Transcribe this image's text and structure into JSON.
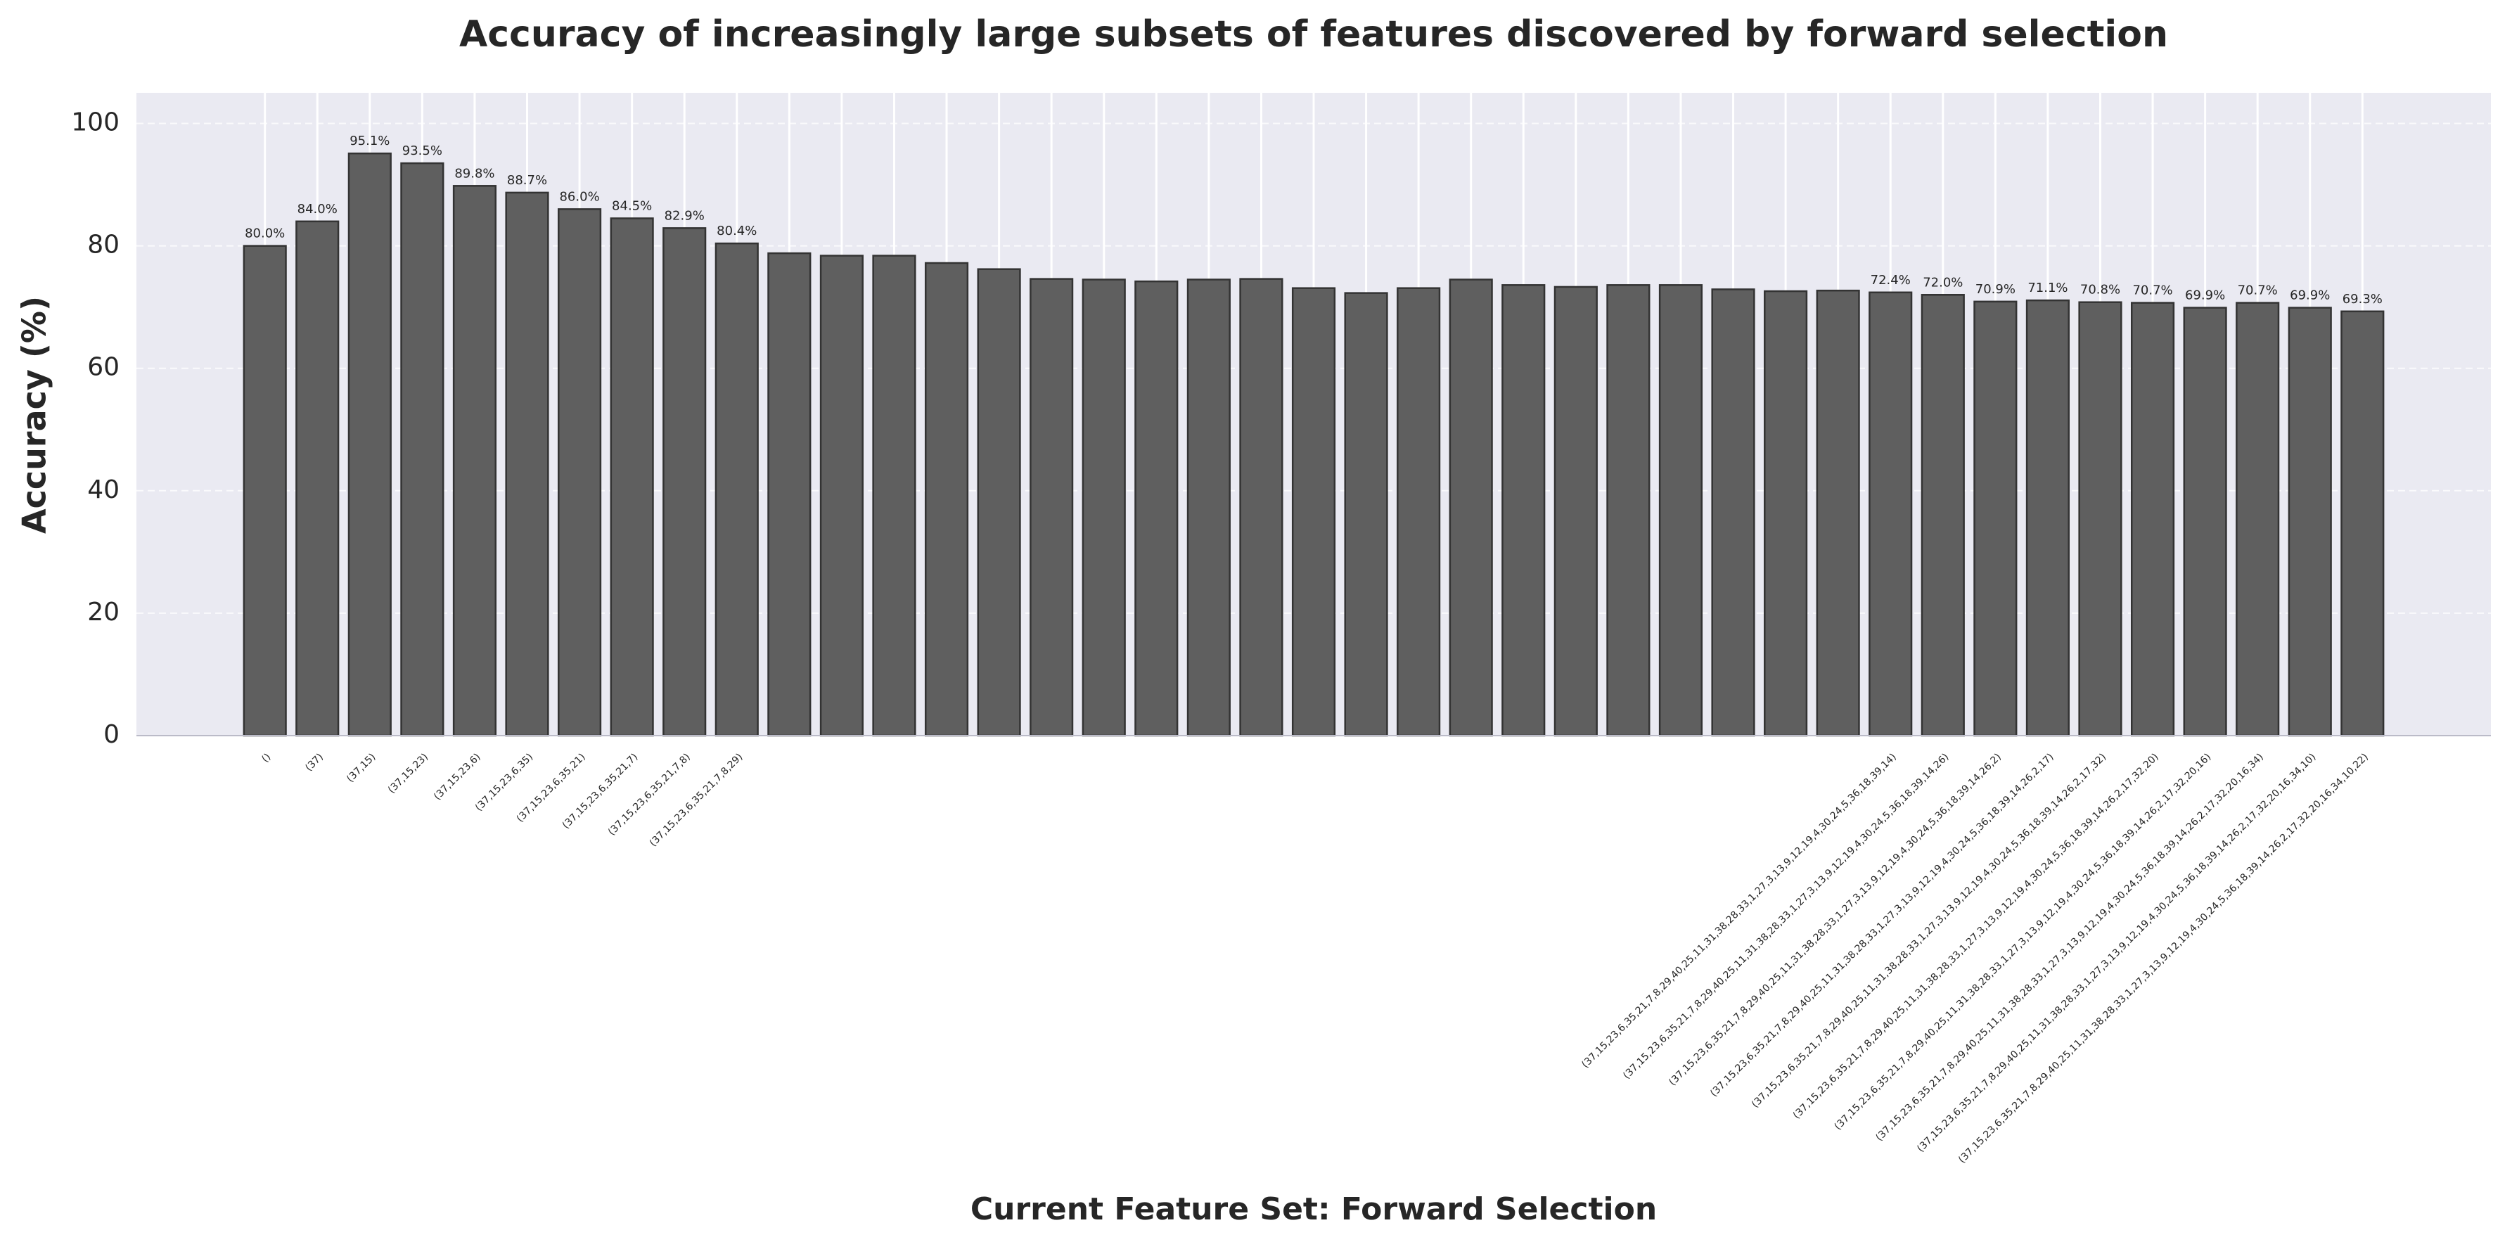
{
  "chart_data": {
    "type": "bar",
    "title": "Accuracy of increasingly large subsets of features discovered by forward selection",
    "x_label": "Current Feature Set: Forward Selection",
    "y_label": "Accuracy (%)",
    "categories": [
      "()",
      "(37)",
      "(37,15)",
      "(37,15,23)",
      "(37,15,23,6)",
      "(37,15,23,6,35)",
      "(37,15,23,6,35,21)",
      "(37,15,23,6,35,21,7)",
      "(37,15,23,6,35,21,7,8)",
      "(37,15,23,6,35,21,7,8,29)",
      null,
      null,
      null,
      null,
      null,
      null,
      null,
      null,
      null,
      null,
      null,
      null,
      null,
      null,
      null,
      null,
      null,
      null,
      null,
      null,
      null,
      "(37,15,23,6,35,21,7,8,29,40,25,11,31,38,28,33,1,27,3,13,9,12,19,4,30,24,5,36,18,39,14)",
      "(37,15,23,6,35,21,7,8,29,40,25,11,31,38,28,33,1,27,3,13,9,12,19,4,30,24,5,36,18,39,14,26)",
      "(37,15,23,6,35,21,7,8,29,40,25,11,31,38,28,33,1,27,3,13,9,12,19,4,30,24,5,36,18,39,14,26,2)",
      "(37,15,23,6,35,21,7,8,29,40,25,11,31,38,28,33,1,27,3,13,9,12,19,4,30,24,5,36,18,39,14,26,2,17)",
      "(37,15,23,6,35,21,7,8,29,40,25,11,31,38,28,33,1,27,3,13,9,12,19,4,30,24,5,36,18,39,14,26,2,17,32)",
      "(37,15,23,6,35,21,7,8,29,40,25,11,31,38,28,33,1,27,3,13,9,12,19,4,30,24,5,36,18,39,14,26,2,17,32,20)",
      "(37,15,23,6,35,21,7,8,29,40,25,11,31,38,28,33,1,27,3,13,9,12,19,4,30,24,5,36,18,39,14,26,2,17,32,20,16)",
      "(37,15,23,6,35,21,7,8,29,40,25,11,31,38,28,33,1,27,3,13,9,12,19,4,30,24,5,36,18,39,14,26,2,17,32,20,16,34)",
      "(37,15,23,6,35,21,7,8,29,40,25,11,31,38,28,33,1,27,3,13,9,12,19,4,30,24,5,36,18,39,14,26,2,17,32,20,16,34,10)",
      "(37,15,23,6,35,21,7,8,29,40,25,11,31,38,28,33,1,27,3,13,9,12,19,4,30,24,5,36,18,39,14,26,2,17,32,20,16,34,10,22)"
    ],
    "values": [
      80.0,
      84.0,
      95.1,
      93.5,
      89.8,
      88.7,
      86.0,
      84.5,
      82.9,
      80.4,
      78.8,
      78.4,
      78.4,
      77.2,
      76.2,
      74.6,
      74.5,
      74.2,
      74.5,
      74.6,
      73.1,
      72.3,
      73.1,
      74.5,
      73.6,
      73.3,
      73.6,
      73.6,
      72.9,
      72.6,
      72.7,
      72.4,
      72.0,
      70.9,
      71.1,
      70.8,
      70.7,
      69.9,
      70.7,
      69.9,
      69.3
    ],
    "value_labels": [
      "80.0%",
      "84.0%",
      "95.1%",
      "93.5%",
      "89.8%",
      "88.7%",
      "86.0%",
      "84.5%",
      "82.9%",
      "80.4%",
      null,
      null,
      null,
      null,
      null,
      null,
      null,
      null,
      null,
      null,
      null,
      null,
      null,
      null,
      null,
      null,
      null,
      null,
      null,
      null,
      null,
      "72.4%",
      "72.0%",
      "70.9%",
      "71.1%",
      "70.8%",
      "70.7%",
      "69.9%",
      "70.7%",
      "69.9%",
      "69.3%"
    ],
    "color": "#5f5f5f",
    "ylim": [
      0,
      105
    ],
    "yticks": [
      0,
      20,
      40,
      60,
      80,
      100
    ],
    "grid": true
  }
}
